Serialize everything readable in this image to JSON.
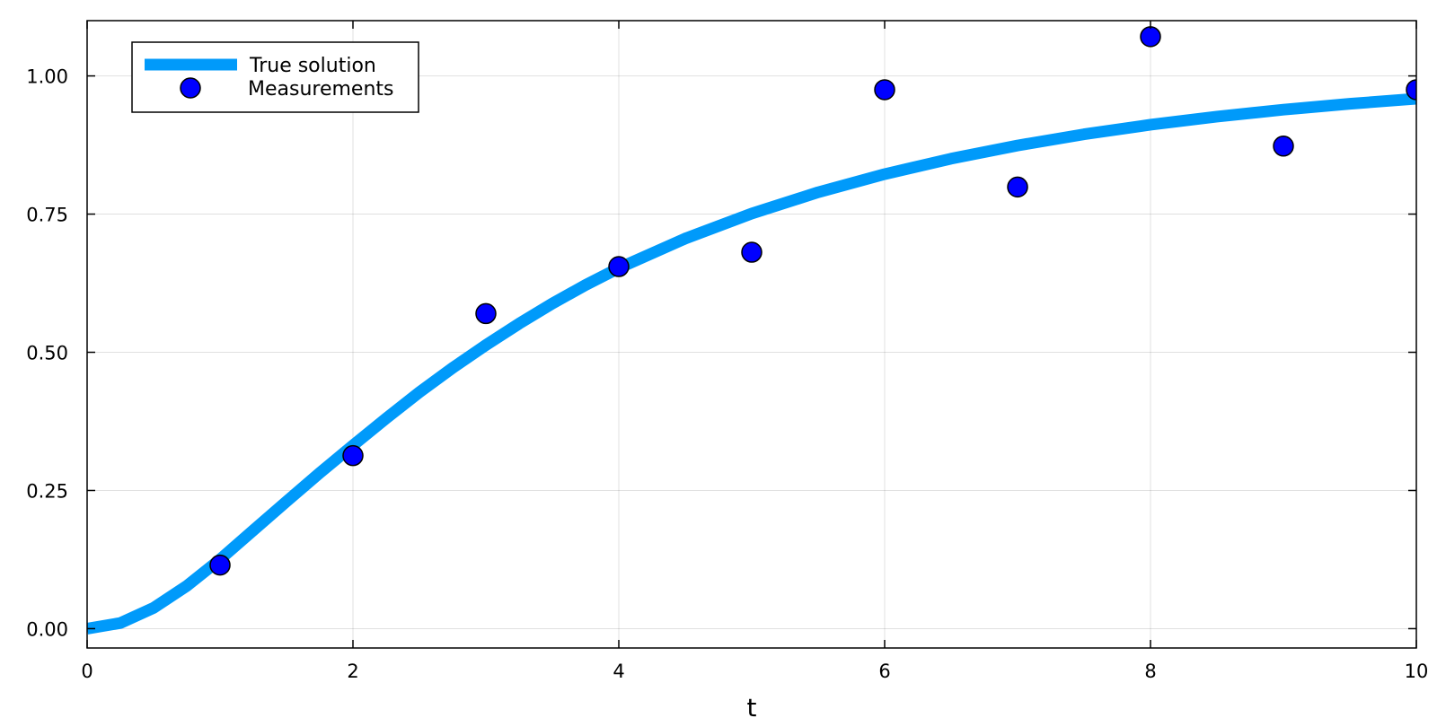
{
  "chart_data": {
    "type": "line",
    "xlabel": "t",
    "ylabel": "",
    "xlim": [
      0,
      10
    ],
    "ylim": [
      -0.035,
      1.1
    ],
    "x_ticks": [
      0,
      2,
      4,
      6,
      8,
      10
    ],
    "x_tick_labels": [
      "0",
      "2",
      "4",
      "6",
      "8",
      "10"
    ],
    "y_ticks": [
      0,
      0.25,
      0.5,
      0.75,
      1.0
    ],
    "y_tick_labels": [
      "0.00",
      "0.25",
      "0.50",
      "0.75",
      "1.00"
    ],
    "grid": true,
    "legend_position": "top-left",
    "series": [
      {
        "name": "True solution",
        "kind": "line",
        "color": "#009AFA",
        "x": [
          0,
          0.25,
          0.5,
          0.75,
          1.0,
          1.25,
          1.5,
          1.75,
          2.0,
          2.25,
          2.5,
          2.75,
          3.0,
          3.25,
          3.5,
          3.75,
          4.0,
          4.5,
          5.0,
          5.5,
          6.0,
          6.5,
          7.0,
          7.5,
          8.0,
          8.5,
          9.0,
          9.5,
          10.0
        ],
        "y": [
          0.0,
          0.0102,
          0.0376,
          0.0773,
          0.1253,
          0.1778,
          0.2301,
          0.2817,
          0.3316,
          0.3805,
          0.4278,
          0.4718,
          0.513,
          0.5518,
          0.5882,
          0.6217,
          0.6523,
          0.7058,
          0.751,
          0.7895,
          0.8223,
          0.8503,
          0.8741,
          0.8944,
          0.9117,
          0.9264,
          0.9389,
          0.9496,
          0.9587
        ]
      },
      {
        "name": "Measurements",
        "kind": "scatter",
        "color": "#0000FF",
        "x": [
          1,
          2,
          3,
          4,
          5,
          6,
          7,
          8,
          9,
          10
        ],
        "y": [
          0.115,
          0.313,
          0.57,
          0.655,
          0.681,
          0.975,
          0.799,
          1.071,
          0.873,
          0.975
        ]
      }
    ]
  }
}
